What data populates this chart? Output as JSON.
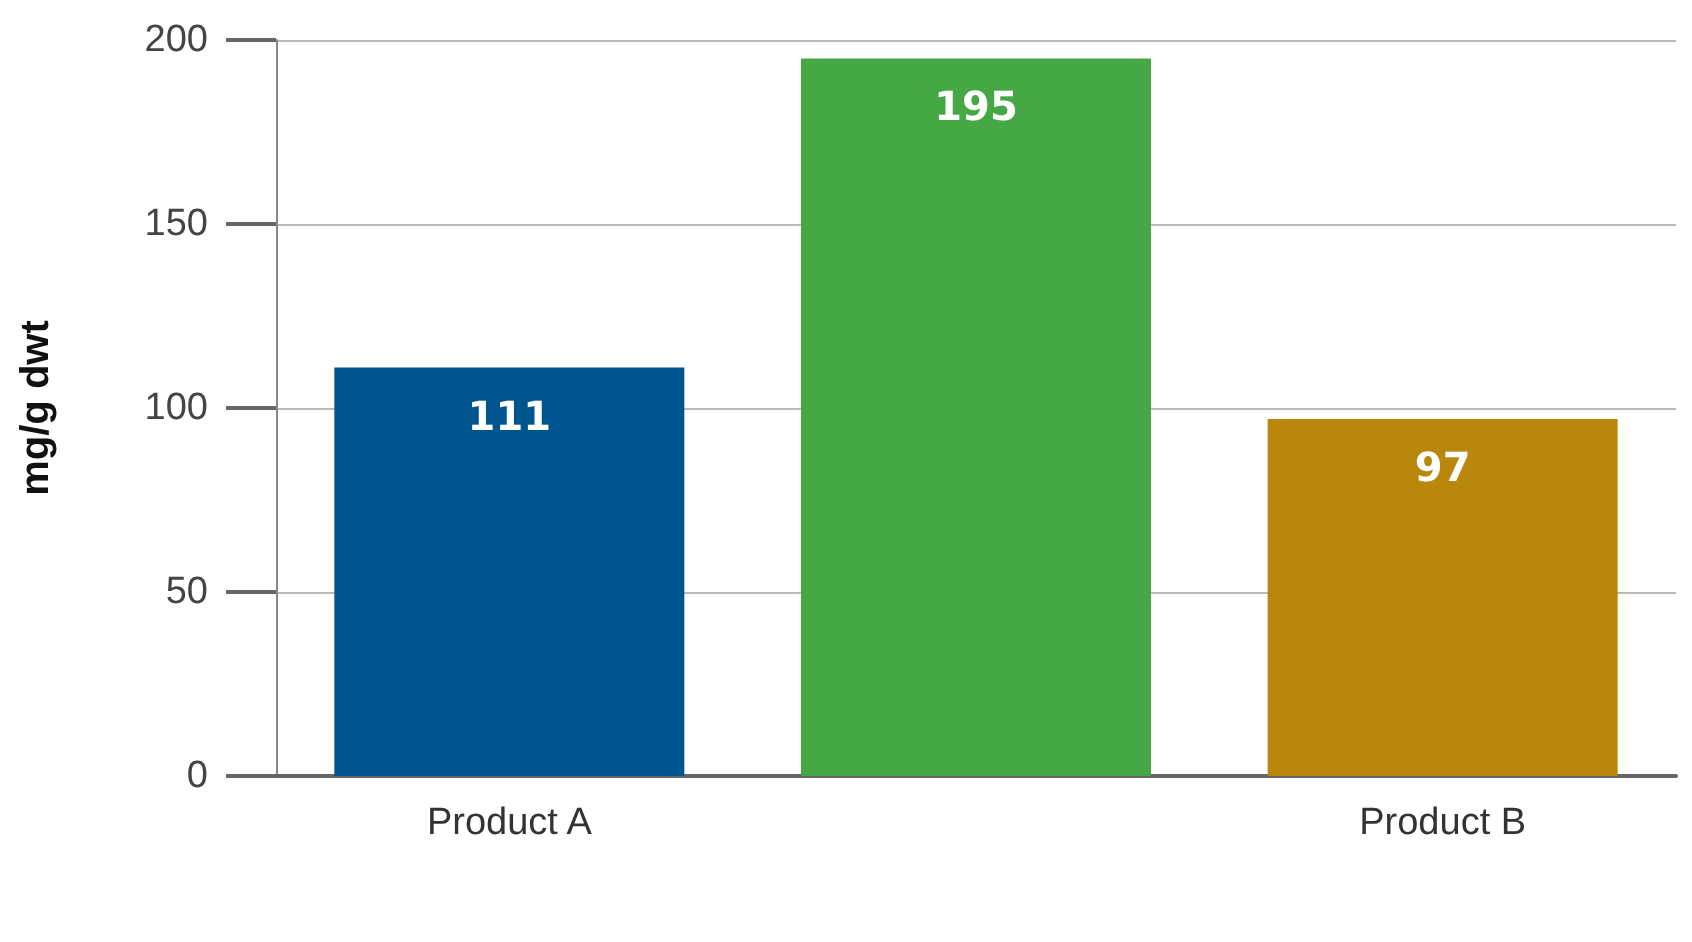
{
  "chart_data": {
    "type": "bar",
    "ylabel": "mg/g dwt",
    "categories": [
      "Product A",
      null,
      "Product B"
    ],
    "values": [
      111,
      195,
      97
    ],
    "colors": [
      "#00558f",
      "#45a845",
      "#b8870b"
    ],
    "ylim": [
      0,
      200
    ],
    "yticks": [
      0,
      50,
      100,
      150,
      200
    ],
    "grid": "y",
    "data_labels": true
  }
}
